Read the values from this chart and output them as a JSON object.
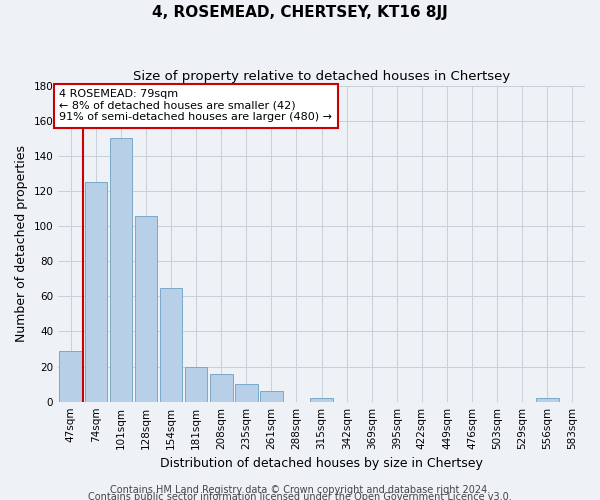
{
  "title": "4, ROSEMEAD, CHERTSEY, KT16 8JJ",
  "subtitle": "Size of property relative to detached houses in Chertsey",
  "xlabel": "Distribution of detached houses by size in Chertsey",
  "ylabel": "Number of detached properties",
  "footer1": "Contains HM Land Registry data © Crown copyright and database right 2024.",
  "footer2": "Contains public sector information licensed under the Open Government Licence v3.0.",
  "categories": [
    "47sqm",
    "74sqm",
    "101sqm",
    "128sqm",
    "154sqm",
    "181sqm",
    "208sqm",
    "235sqm",
    "261sqm",
    "288sqm",
    "315sqm",
    "342sqm",
    "369sqm",
    "395sqm",
    "422sqm",
    "449sqm",
    "476sqm",
    "503sqm",
    "529sqm",
    "556sqm",
    "583sqm"
  ],
  "values": [
    29,
    125,
    150,
    106,
    65,
    20,
    16,
    10,
    6,
    0,
    2,
    0,
    0,
    0,
    0,
    0,
    0,
    0,
    0,
    2,
    0
  ],
  "bar_color": "#b8cfe8",
  "bar_edge_color": "#7aaac8",
  "grid_color": "#c8d0d8",
  "background_color": "#eef2f7",
  "annotation_line_color": "#cc0000",
  "annotation_box_color": "#ffffff",
  "annotation_text_line1": "4 ROSEMEAD: 79sqm",
  "annotation_text_line2": "← 8% of detached houses are smaller (42)",
  "annotation_text_line3": "91% of semi-detached houses are larger (480) →",
  "ylim": [
    0,
    180
  ],
  "yticks": [
    0,
    20,
    40,
    60,
    80,
    100,
    120,
    140,
    160,
    180
  ],
  "red_line_x": 0.5,
  "title_fontsize": 11,
  "subtitle_fontsize": 9.5,
  "xlabel_fontsize": 9,
  "ylabel_fontsize": 9,
  "tick_fontsize": 7.5,
  "annotation_fontsize": 8,
  "footer_fontsize": 7
}
